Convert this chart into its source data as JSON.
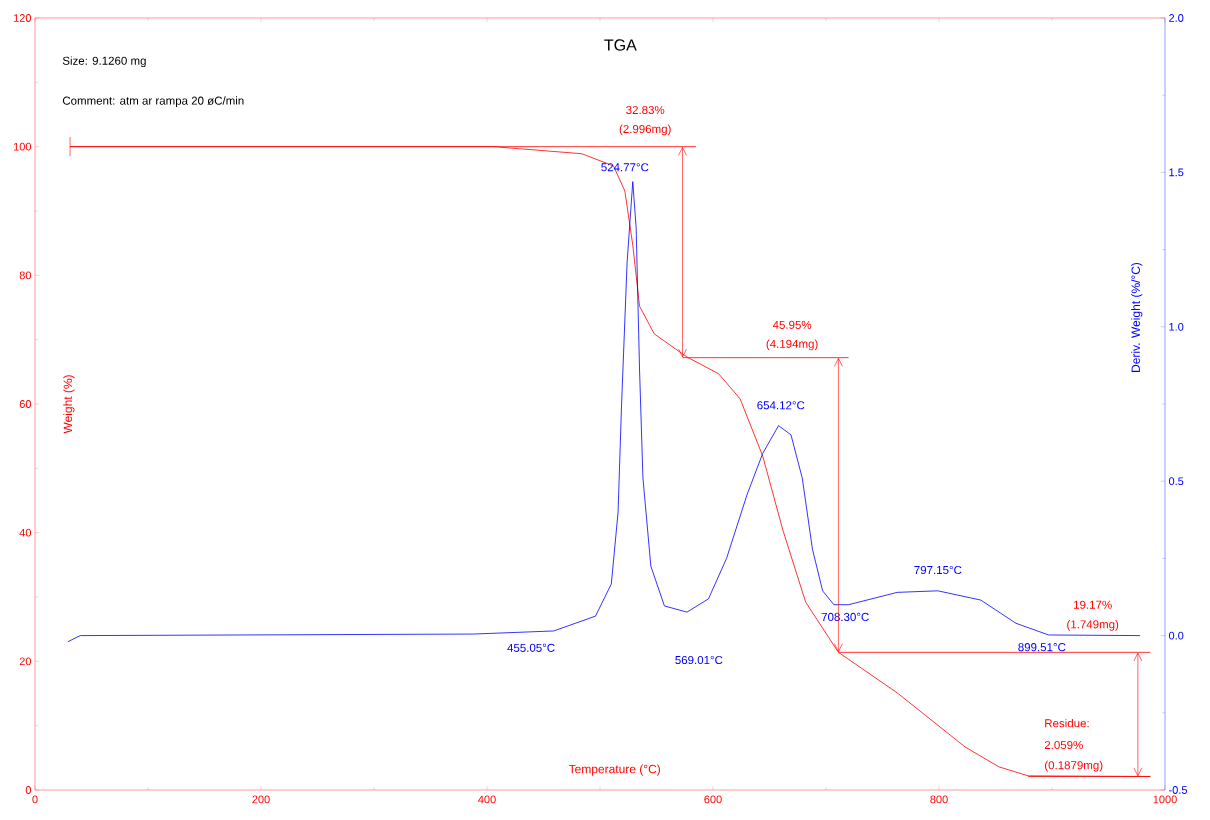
{
  "chart_data": {
    "type": "line",
    "title": "TGA",
    "xlabel": "Temperature (°C)",
    "ylabel": "Weight (%)",
    "y2label": "Deriv. Weight (%/°C)",
    "annotations": [
      "Size:   9.1260 mg",
      "Comment: atm ar rampa 20 øC/min",
      "32.83%",
      "(2.996mg)",
      "45.95%",
      "(4.194mg)",
      "19.17%",
      "(1.749mg)",
      "Residue:",
      "2.059%",
      "(0.1879mg)",
      "524.77°C",
      "569.01°C",
      "654.12°C",
      "708.30°C",
      "797.15°C",
      "899.51°C",
      "455.05°C"
    ],
    "xlim": [
      0,
      1000
    ],
    "xticks": [
      0,
      200,
      400,
      600,
      800,
      1000
    ],
    "ylim": [
      0,
      120
    ],
    "yticks": [
      0,
      20,
      40,
      60,
      80,
      100,
      120
    ],
    "y2lim": [
      -0.5,
      2.0
    ],
    "y2ticks": [
      {
        "value": -0.5,
        "label": "-0.5"
      },
      {
        "value": 0,
        "label": "0.0"
      },
      {
        "value": 0.5,
        "label": "0.5"
      },
      {
        "value": 1.0,
        "label": "1.0"
      },
      {
        "value": 1.5,
        "label": "1.5"
      },
      {
        "value": 2.0,
        "label": "2.0"
      }
    ],
    "series": [
      {
        "color": "#ff0000",
        "x": [
          31,
          406,
          484,
          512,
          522,
          529,
          535,
          548,
          577,
          605,
          624,
          644,
          662,
          682,
          711,
          763,
          823,
          853,
          879,
          987
        ],
        "values": [
          100,
          100,
          98.9,
          97.0,
          93.1,
          84.7,
          75.2,
          70.9,
          67.3,
          64.7,
          60.8,
          51.9,
          40.3,
          29.2,
          21.4,
          15.1,
          6.7,
          3.6,
          2.2,
          2.1
        ]
      },
      {
        "type": "line",
        "color": "#ff0000",
        "x": [
          31,
          585
        ],
        "values": [
          100,
          100
        ]
      },
      {
        "type": "line",
        "color": "#ff0000",
        "x": [
          573,
          720
        ],
        "values": [
          67.2,
          67.2
        ]
      },
      {
        "type": "line",
        "color": "#ff0000",
        "x": [
          711,
          987
        ],
        "values": [
          21.4,
          21.4
        ]
      },
      {
        "type": "line",
        "color": "#ff0000",
        "x": [
          879,
          987
        ],
        "values": [
          2.1,
          2.1
        ]
      },
      {
        "color": "#0000ff",
        "axis": "y2",
        "x": [
          29,
          40,
          388,
          459,
          496,
          510,
          516,
          519,
          524,
          529,
          532,
          535,
          538,
          545,
          557,
          577,
          596,
          612,
          630,
          644,
          658,
          669,
          679,
          688,
          697,
          707,
          720,
          763,
          799,
          837,
          868,
          897,
          978
        ],
        "values": [
          -0.02,
          0,
          0.005,
          0.015,
          0.063,
          0.167,
          0.4,
          0.74,
          1.21,
          1.47,
          1.32,
          0.86,
          0.51,
          0.225,
          0.096,
          0.076,
          0.119,
          0.25,
          0.455,
          0.59,
          0.68,
          0.65,
          0.51,
          0.28,
          0.145,
          0.1,
          0.1,
          0.14,
          0.145,
          0.115,
          0.04,
          0.002,
          0.0
        ]
      }
    ]
  }
}
